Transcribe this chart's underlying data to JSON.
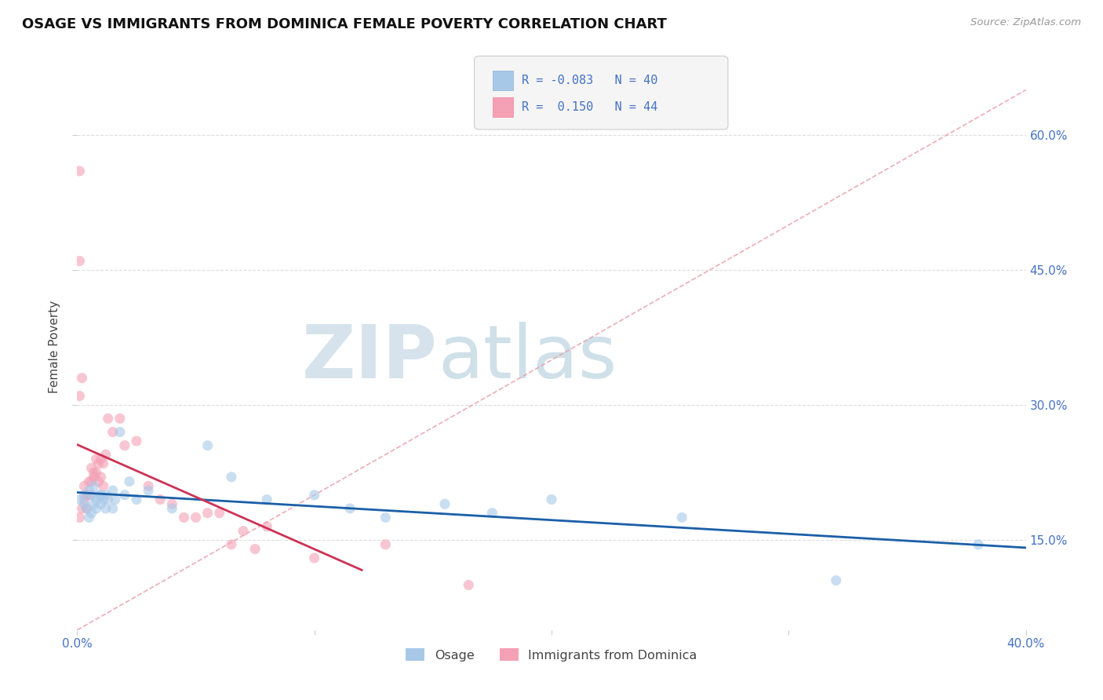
{
  "title": "OSAGE VS IMMIGRANTS FROM DOMINICA FEMALE POVERTY CORRELATION CHART",
  "source": "Source: ZipAtlas.com",
  "ylabel": "Female Poverty",
  "xlim": [
    0.0,
    0.4
  ],
  "ylim": [
    0.05,
    0.68
  ],
  "xticks": [
    0.0,
    0.1,
    0.2,
    0.3,
    0.4
  ],
  "xtick_labels": [
    "0.0%",
    "",
    "",
    "",
    "40.0%"
  ],
  "yticks": [
    0.15,
    0.3,
    0.45,
    0.6
  ],
  "ytick_labels": [
    "15.0%",
    "30.0%",
    "45.0%",
    "60.0%"
  ],
  "blue_color": "#a8c8e8",
  "pink_color": "#f4a0b5",
  "blue_line_color": "#1a5fa8",
  "pink_line_color": "#cc3355",
  "diag_color": "#e8a0a8",
  "watermark_zip_color": "#c8dce8",
  "watermark_atlas_color": "#a8c8d8",
  "osage_x": [
    0.001,
    0.003,
    0.003,
    0.004,
    0.005,
    0.005,
    0.006,
    0.006,
    0.007,
    0.007,
    0.008,
    0.008,
    0.009,
    0.01,
    0.01,
    0.011,
    0.012,
    0.012,
    0.013,
    0.015,
    0.015,
    0.016,
    0.018,
    0.02,
    0.022,
    0.025,
    0.03,
    0.04,
    0.055,
    0.065,
    0.08,
    0.1,
    0.115,
    0.13,
    0.155,
    0.175,
    0.2,
    0.255,
    0.32,
    0.38
  ],
  "osage_y": [
    0.195,
    0.19,
    0.2,
    0.185,
    0.175,
    0.205,
    0.18,
    0.2,
    0.19,
    0.21,
    0.185,
    0.195,
    0.2,
    0.19,
    0.2,
    0.195,
    0.185,
    0.2,
    0.195,
    0.205,
    0.185,
    0.195,
    0.27,
    0.2,
    0.215,
    0.195,
    0.205,
    0.185,
    0.255,
    0.22,
    0.195,
    0.2,
    0.185,
    0.175,
    0.19,
    0.18,
    0.195,
    0.175,
    0.105,
    0.145
  ],
  "dominica_x": [
    0.001,
    0.002,
    0.003,
    0.003,
    0.004,
    0.004,
    0.005,
    0.005,
    0.006,
    0.006,
    0.007,
    0.007,
    0.008,
    0.008,
    0.009,
    0.009,
    0.01,
    0.01,
    0.011,
    0.011,
    0.012,
    0.013,
    0.015,
    0.018,
    0.02,
    0.025,
    0.03,
    0.035,
    0.04,
    0.045,
    0.05,
    0.055,
    0.06,
    0.065,
    0.07,
    0.075,
    0.08,
    0.1,
    0.13,
    0.165,
    0.001,
    0.002,
    0.001,
    0.001
  ],
  "dominica_y": [
    0.175,
    0.185,
    0.195,
    0.21,
    0.185,
    0.2,
    0.215,
    0.2,
    0.215,
    0.23,
    0.22,
    0.225,
    0.24,
    0.225,
    0.235,
    0.215,
    0.24,
    0.22,
    0.235,
    0.21,
    0.245,
    0.285,
    0.27,
    0.285,
    0.255,
    0.26,
    0.21,
    0.195,
    0.19,
    0.175,
    0.175,
    0.18,
    0.18,
    0.145,
    0.16,
    0.14,
    0.165,
    0.13,
    0.145,
    0.1,
    0.31,
    0.33,
    0.56,
    0.46
  ],
  "background_color": "#ffffff",
  "grid_color": "#dddddd",
  "title_color": "#111111",
  "axis_label_color": "#444444",
  "tick_color": "#4472c4",
  "legend_text_color": "#4472c4"
}
